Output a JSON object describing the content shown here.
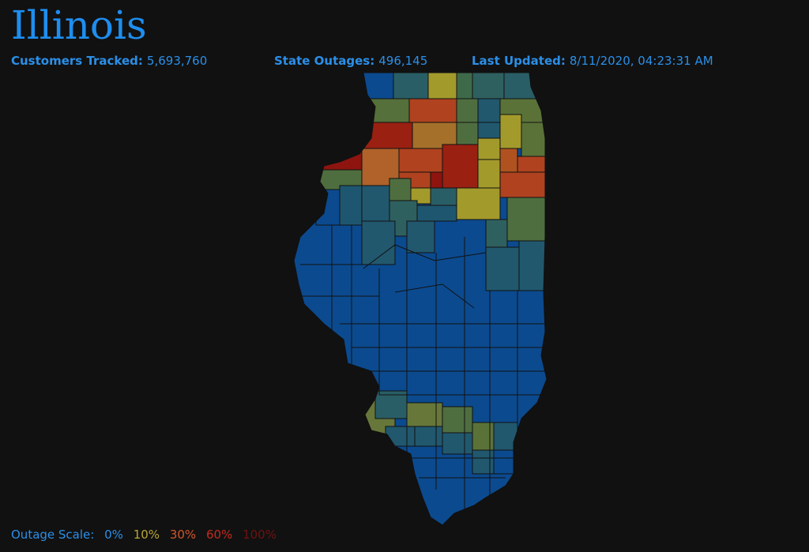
{
  "header": {
    "title": "Illinois"
  },
  "stats": [
    {
      "label": "Customers Tracked:",
      "value": "5,693,760"
    },
    {
      "label": "State Outages:",
      "value": "496,145"
    },
    {
      "label": "Last Updated:",
      "value": "8/11/2020, 04:23:31 AM"
    }
  ],
  "scale": {
    "label": "Outage Scale:",
    "steps": [
      "0%",
      "10%",
      "30%",
      "60%",
      "100%"
    ]
  }
}
